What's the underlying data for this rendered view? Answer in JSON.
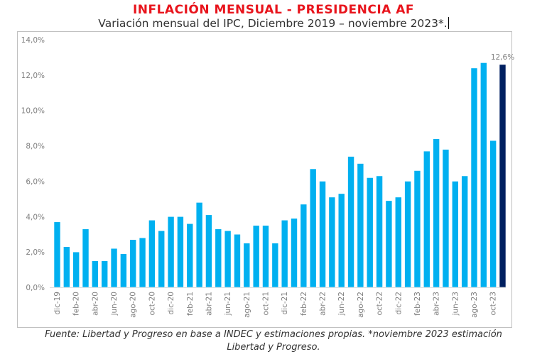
{
  "header": {
    "title": "INFLACIÓN MENSUAL - PRESIDENCIA AF",
    "subtitle": "Variación mensual del IPC, Diciembre 2019 – noviembre 2023*."
  },
  "footer": {
    "source_line1": "Fuente: Libertad y Progreso en base a INDEC y estimaciones propias. *noviembre 2023 estimación",
    "source_line2": "Libertad y Progreso."
  },
  "colors": {
    "bar": "#00b0f0",
    "highlight_bar": "#002060",
    "title": "#e8141c",
    "axis_text": "#7f7f7f"
  },
  "chart_data": {
    "type": "bar",
    "title": "INFLACIÓN MENSUAL - PRESIDENCIA AF",
    "subtitle": "Variación mensual del IPC, Diciembre 2019 – noviembre 2023*.",
    "xlabel": "",
    "ylabel": "",
    "ylim": [
      0,
      14
    ],
    "yticks": [
      0,
      2,
      4,
      6,
      8,
      10,
      12,
      14
    ],
    "ytick_labels": [
      "0,0%",
      "2,0%",
      "4,0%",
      "6,0%",
      "8,0%",
      "10,0%",
      "12,0%",
      "14,0%"
    ],
    "grid": false,
    "legend": "none",
    "categories": [
      "dic-19",
      "ene-20",
      "feb-20",
      "mar-20",
      "abr-20",
      "may-20",
      "jun-20",
      "jul-20",
      "ago-20",
      "sep-20",
      "oct-20",
      "nov-20",
      "dic-20",
      "ene-21",
      "feb-21",
      "mar-21",
      "abr-21",
      "may-21",
      "jun-21",
      "jul-21",
      "ago-21",
      "sep-21",
      "oct-21",
      "nov-21",
      "dic-21",
      "ene-22",
      "feb-22",
      "mar-22",
      "abr-22",
      "may-22",
      "jun-22",
      "jul-22",
      "ago-22",
      "sep-22",
      "oct-22",
      "nov-22",
      "dic-22",
      "ene-23",
      "feb-23",
      "mar-23",
      "abr-23",
      "may-23",
      "jun-23",
      "jul-23",
      "ago-23",
      "sep-23",
      "oct-23",
      "nov-23"
    ],
    "xtick_labels_shown": [
      "dic-19",
      "feb-20",
      "abr-20",
      "jun-20",
      "ago-20",
      "oct-20",
      "dic-20",
      "feb-21",
      "abr-21",
      "jun-21",
      "ago-21",
      "oct-21",
      "dic-21",
      "feb-22",
      "abr-22",
      "jun-22",
      "ago-22",
      "oct-22",
      "dic-22",
      "feb-23",
      "abr-23",
      "jun-23",
      "ago-23",
      "oct-23"
    ],
    "values": [
      3.7,
      2.3,
      2.0,
      3.3,
      1.5,
      1.5,
      2.2,
      1.9,
      2.7,
      2.8,
      3.8,
      3.2,
      4.0,
      4.0,
      3.6,
      4.8,
      4.1,
      3.3,
      3.2,
      3.0,
      2.5,
      3.5,
      3.5,
      2.5,
      3.8,
      3.9,
      4.7,
      6.7,
      6.0,
      5.1,
      5.3,
      7.4,
      7.0,
      6.2,
      6.3,
      4.9,
      5.1,
      6.0,
      6.6,
      7.7,
      8.4,
      7.8,
      6.0,
      6.3,
      12.4,
      12.7,
      8.3,
      12.6
    ],
    "highlight_index": 47,
    "annotations": [
      {
        "category": "nov-23",
        "text": "12,6%"
      }
    ]
  }
}
